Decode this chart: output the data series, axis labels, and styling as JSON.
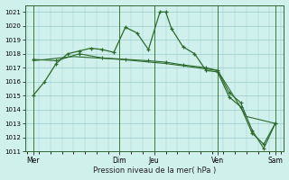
{
  "xlabel": "Pression niveau de la mer( hPa )",
  "bg_color": "#d0f0ec",
  "grid_color": "#99cccc",
  "line_color": "#2d6a2d",
  "ylim": [
    1011,
    1021.5
  ],
  "yticks": [
    1011,
    1012,
    1013,
    1014,
    1015,
    1016,
    1017,
    1018,
    1019,
    1020,
    1021
  ],
  "day_labels": [
    "Mer",
    "",
    "Dim",
    "Jeu",
    "",
    "Ven",
    "",
    "Sam"
  ],
  "vline_positions": [
    0.5,
    8.0,
    11.0,
    16.5,
    21.5
  ],
  "vline_labels": [
    "Mer",
    "Dim",
    "Jeu",
    "Ven",
    "Sam"
  ],
  "xlim": [
    -0.2,
    22.2
  ],
  "line1_x": [
    0.5,
    1.5,
    2.5,
    3.5,
    4.5,
    5.5,
    6.5,
    7.5,
    8.5,
    9.5,
    10.5,
    11.5,
    12.0,
    12.5,
    13.5,
    14.5,
    15.5,
    16.5,
    17.5,
    18.5,
    19.5,
    20.5,
    21.5
  ],
  "line1_y": [
    1015.0,
    1016.0,
    1017.3,
    1018.0,
    1018.2,
    1018.4,
    1018.3,
    1018.1,
    1019.9,
    1019.5,
    1018.3,
    1021.0,
    1021.0,
    1019.8,
    1018.5,
    1018.0,
    1016.8,
    1016.7,
    1014.9,
    1014.2,
    1012.3,
    1011.5,
    1013.0
  ],
  "line2_x": [
    0.5,
    2.5,
    4.5,
    6.5,
    8.5,
    10.5,
    12.0,
    13.5,
    15.5,
    16.5,
    17.5,
    18.5,
    19.5,
    20.5,
    21.5
  ],
  "line2_y": [
    1017.6,
    1017.5,
    1018.0,
    1017.7,
    1017.6,
    1017.5,
    1017.4,
    1017.2,
    1017.0,
    1016.8,
    1015.2,
    1014.5,
    1012.5,
    1011.2,
    1013.0
  ],
  "line3_x": [
    0.5,
    4.0,
    8.0,
    12.0,
    16.5,
    19.0,
    21.5
  ],
  "line3_y": [
    1017.5,
    1017.8,
    1017.6,
    1017.3,
    1016.8,
    1013.5,
    1013.0
  ]
}
